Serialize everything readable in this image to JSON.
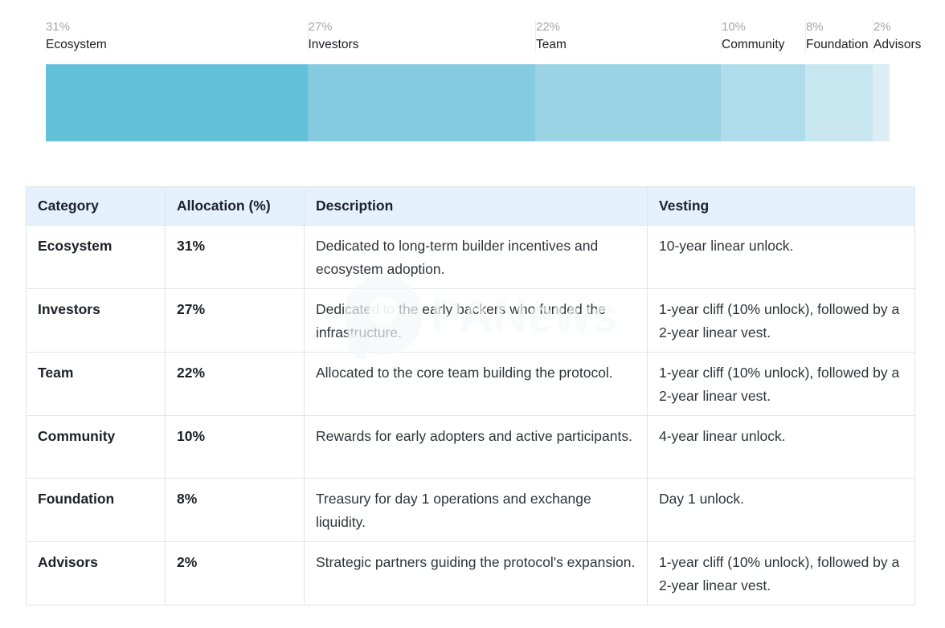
{
  "chart_data": {
    "type": "bar",
    "orientation": "horizontal-stacked",
    "title": "",
    "xlabel": "",
    "ylabel": "",
    "unit": "%",
    "categories": [
      "Ecosystem",
      "Investors",
      "Team",
      "Community",
      "Foundation",
      "Advisors"
    ],
    "values": [
      31,
      27,
      22,
      10,
      8,
      2
    ],
    "colors": [
      "#63c0d9",
      "#84cbdf",
      "#99d3e4",
      "#afdcea",
      "#c7e6f0",
      "#dcedf5"
    ],
    "legend_position": "above-bar-labels",
    "grid": false
  },
  "chart": {
    "segments": [
      {
        "name": "Ecosystem",
        "pct_label": "31%",
        "value": 31,
        "color": "#63c0d9"
      },
      {
        "name": "Investors",
        "pct_label": "27%",
        "value": 27,
        "color": "#84cbdf"
      },
      {
        "name": "Team",
        "pct_label": "22%",
        "value": 22,
        "color": "#99d3e4"
      },
      {
        "name": "Community",
        "pct_label": "10%",
        "value": 10,
        "color": "#afdcea"
      },
      {
        "name": "Foundation",
        "pct_label": "8%",
        "value": 8,
        "color": "#c7e6f0"
      },
      {
        "name": "Advisors",
        "pct_label": "2%",
        "value": 2,
        "color": "#dcedf5"
      }
    ]
  },
  "table": {
    "headers": [
      "Category",
      "Allocation (%)",
      "Description",
      "Vesting"
    ],
    "rows": [
      {
        "category": "Ecosystem",
        "allocation": "31%",
        "description": "Dedicated to long-term builder incentives and ecosystem adoption.",
        "vesting": "10-year linear unlock."
      },
      {
        "category": "Investors",
        "allocation": "27%",
        "description": "Dedicated to the early backers who funded the infrastructure.",
        "vesting": "1-year cliff (10% unlock), followed by a 2-year linear vest."
      },
      {
        "category": "Team",
        "allocation": "22%",
        "description": "Allocated to the core team building the protocol.",
        "vesting": "1-year cliff (10% unlock), followed by a 2-year linear vest."
      },
      {
        "category": "Community",
        "allocation": "10%",
        "description": "Rewards for early adopters and active participants.",
        "vesting": "4-year linear unlock."
      },
      {
        "category": "Foundation",
        "allocation": "8%",
        "description": "Treasury for day 1 operations and exchange liquidity.",
        "vesting": "Day 1 unlock."
      },
      {
        "category": "Advisors",
        "allocation": "2%",
        "description": "Strategic partners guiding the protocol's expansion.",
        "vesting": "1-year cliff (10% unlock), followed by a 2-year linear vest."
      }
    ]
  },
  "watermark": {
    "text": "PANews"
  }
}
